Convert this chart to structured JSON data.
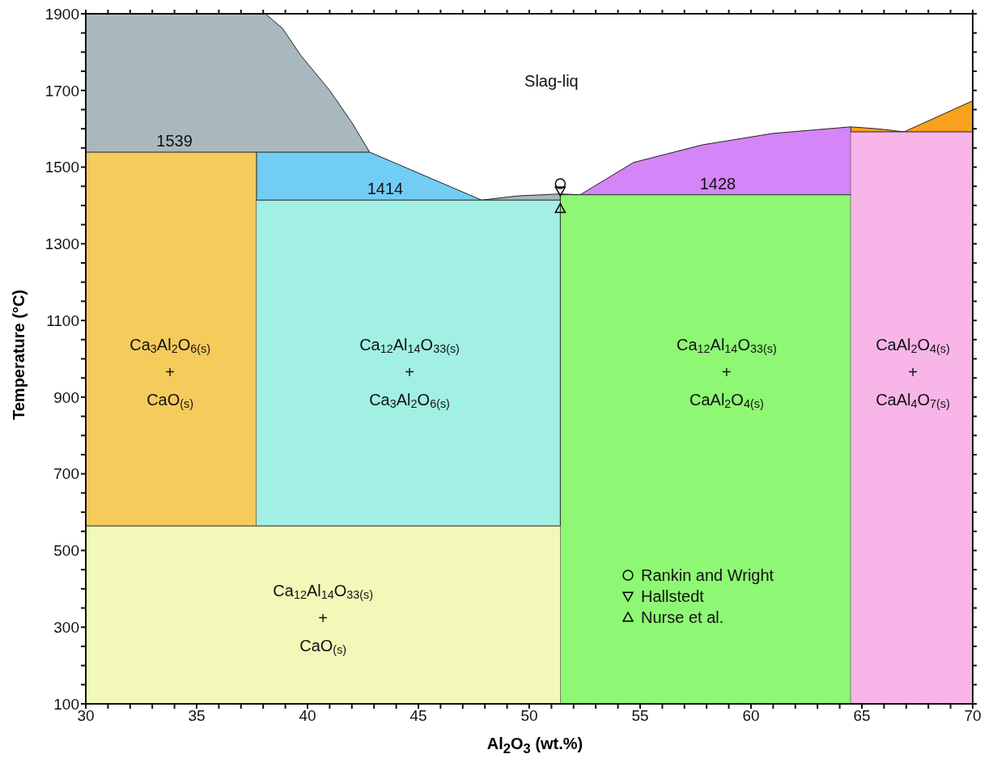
{
  "chart_data": {
    "type": "area",
    "xlabel": "Al$_{2}$O$_{3}$ (wt.%)",
    "ylabel": "Temperature (°C)",
    "xlim": [
      30,
      70
    ],
    "xticks": [
      30,
      {
        "value": 31,
        "label": null
      },
      {
        "value": 32,
        "label": null
      },
      {
        "value": 33,
        "label": null
      },
      {
        "value": 34,
        "label": null
      },
      35,
      {
        "value": 36,
        "label": null
      },
      {
        "value": 37,
        "label": null
      },
      {
        "value": 38,
        "label": null
      },
      {
        "value": 39,
        "label": null
      },
      40,
      {
        "value": 41,
        "label": null
      },
      {
        "value": 42,
        "label": null
      },
      {
        "value": 43,
        "label": null
      },
      {
        "value": 44,
        "label": null
      },
      45,
      {
        "value": 46,
        "label": null
      },
      {
        "value": 47,
        "label": null
      },
      {
        "value": 48,
        "label": null
      },
      {
        "value": 49,
        "label": null
      },
      50,
      {
        "value": 51,
        "label": null
      },
      {
        "value": 52,
        "label": null
      },
      {
        "value": 53,
        "label": null
      },
      {
        "value": 54,
        "label": null
      },
      55,
      {
        "value": 56,
        "label": null
      },
      {
        "value": 57,
        "label": null
      },
      {
        "value": 58,
        "label": null
      },
      {
        "value": 59,
        "label": null
      },
      60,
      {
        "value": 61,
        "label": null
      },
      {
        "value": 62,
        "label": null
      },
      {
        "value": 63,
        "label": null
      },
      {
        "value": 64,
        "label": null
      },
      65,
      {
        "value": 66,
        "label": null
      },
      {
        "value": 67,
        "label": null
      },
      {
        "value": 68,
        "label": null
      },
      {
        "value": 69,
        "label": null
      },
      70
    ],
    "ylim": [
      100,
      1900
    ],
    "yticks": [
      100,
      {
        "value": 150,
        "label": null
      },
      {
        "value": 200,
        "label": null
      },
      {
        "value": 250,
        "label": null
      },
      300,
      {
        "value": 350,
        "label": null
      },
      {
        "value": 400,
        "label": null
      },
      {
        "value": 450,
        "label": null
      },
      500,
      {
        "value": 550,
        "label": null
      },
      {
        "value": 600,
        "label": null
      },
      {
        "value": 650,
        "label": null
      },
      700,
      {
        "value": 750,
        "label": null
      },
      {
        "value": 800,
        "label": null
      },
      {
        "value": 850,
        "label": null
      },
      900,
      {
        "value": 950,
        "label": null
      },
      {
        "value": 1000,
        "label": null
      },
      {
        "value": 1050,
        "label": null
      },
      1100,
      {
        "value": 1150,
        "label": null
      },
      {
        "value": 1200,
        "label": null
      },
      {
        "value": 1250,
        "label": null
      },
      1300,
      {
        "value": 1350,
        "label": null
      },
      {
        "value": 1400,
        "label": null
      },
      {
        "value": 1450,
        "label": null
      },
      1500,
      {
        "value": 1550,
        "label": null
      },
      {
        "value": 1600,
        "label": null
      },
      {
        "value": 1650,
        "label": null
      },
      1700,
      {
        "value": 1750,
        "label": null
      },
      {
        "value": 1800,
        "label": null
      },
      {
        "value": 1850,
        "label": null
      },
      1900
    ],
    "legend": "bottom right",
    "series": [
      {
        "color": "#a9b8bf",
        "x": [
          30,
          38.1,
          38.87,
          39.7,
          41.0,
          42.0,
          42.8
        ],
        "values": [
          1900,
          1900,
          1862,
          1791,
          1700,
          1616,
          1539
        ]
      },
      {
        "color": "#f7a11c",
        "x": [
          64.5,
          65.7,
          66.9,
          70
        ],
        "values": [
          1605,
          1600,
          1592,
          1673
        ]
      },
      {
        "color": "#a9b8bf",
        "x": [
          47.85,
          49.5,
          51.4,
          52.3
        ],
        "values": [
          1414,
          1425,
          1430,
          1428
        ]
      },
      {
        "color": "#d485f7",
        "x": [
          52.3,
          54.7,
          57.8,
          61,
          64.5,
          64.5
        ],
        "values": [
          1428,
          1512,
          1558,
          1588,
          1605,
          1428
        ]
      },
      {
        "color": "#72cdf4",
        "x": [
          37.7,
          42.8,
          47.85
        ],
        "values": [
          1539,
          1539,
          1414
        ]
      },
      {
        "color": "#f5cb5c",
        "x": [
          30,
          37.7,
          37.7
        ],
        "values": [
          1539,
          1539,
          564
        ]
      },
      {
        "color": "#a2efe3",
        "x": [
          37.7,
          51.4
        ],
        "values": [
          1414,
          1414
        ]
      },
      {
        "color": "#8ef774",
        "x": [
          51.4,
          51.4,
          64.5,
          64.5
        ],
        "values": [
          100,
          1428,
          1428,
          100
        ]
      },
      {
        "color": "#f7b5e8",
        "x": [
          64.5,
          70
        ],
        "values": [
          1592,
          1592
        ]
      },
      {
        "color": "#f2f9b8",
        "x": [
          30,
          51.4
        ],
        "values": [
          564,
          564
        ]
      },
      {
        "type": "scatter",
        "name": "Rankin and Wright",
        "color": "#000000",
        "marker": "circle",
        "x": [
          51.4
        ],
        "values": [
          1457
        ]
      },
      {
        "type": "scatter",
        "name": "Hallstedt",
        "color": "#000000",
        "marker": "triangle-down",
        "x": [
          51.4
        ],
        "values": [
          1438
        ]
      },
      {
        "type": "scatter",
        "name": "Nurse et al.",
        "color": "#000000",
        "marker": "triangle",
        "x": [
          51.4
        ],
        "values": [
          1392
        ]
      }
    ],
    "annotations": [
      "Slag-liq",
      "1539",
      "1414",
      "1428",
      "Ca$_{3}$Al$_{2}$O$_{6(s)}$\n+\nCaO$_{(s)}$",
      "Ca$_{12}$Al$_{14}$O$_{33(s)}$\n+\nCa$_{3}$Al$_{2}$O$_{6(s)}$",
      "Ca$_{12}$Al$_{14}$O$_{33(s)}$\n+\nCaAl$_{2}$O$_{4(s)}$",
      "CaAl$_{2}$O$_{4(s)}$\n+\nCaAl$_{4}$O$_{7(s)}$",
      "Ca$_{12}$Al$_{14}$O$_{33(s)}$\n+\nCaO$_{(s)}$"
    ]
  }
}
